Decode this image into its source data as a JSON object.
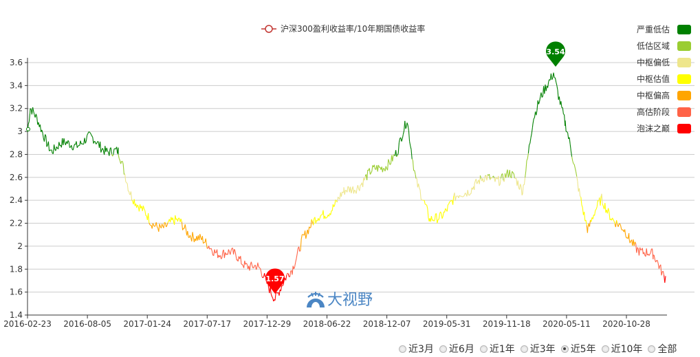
{
  "chart_data": {
    "type": "line",
    "title": "",
    "series_name": "沪深300盈利收益率/10年期国债收益率",
    "xlabel": "",
    "ylabel": "",
    "ylim": [
      1.4,
      3.6
    ],
    "yticks": [
      "1.4",
      "1.6",
      "1.8",
      "2",
      "2.2",
      "2.4",
      "2.6",
      "2.8",
      "3",
      "3.2",
      "3.4",
      "3.6"
    ],
    "xticks": [
      "2016-02-23",
      "2016-08-05",
      "2017-01-24",
      "2017-07-17",
      "2017-12-29",
      "2018-06-22",
      "2018-12-07",
      "2019-05-31",
      "2019-11-18",
      "2020-05-11",
      "2020-10-28"
    ],
    "grid": true,
    "legend_position": "top",
    "x": [
      "2016-02-23",
      "2016-03-15",
      "2016-05-10",
      "2016-08-05",
      "2016-10-20",
      "2016-11-25",
      "2017-01-24",
      "2017-04-20",
      "2017-07-17",
      "2017-10-10",
      "2017-12-29",
      "2018-02-10",
      "2018-04-15",
      "2018-06-22",
      "2018-09-20",
      "2018-12-07",
      "2019-02-20",
      "2019-04-15",
      "2019-05-31",
      "2019-08-20",
      "2019-11-18",
      "2020-01-15",
      "2020-03-01",
      "2020-03-20",
      "2020-05-11",
      "2020-07-10",
      "2020-08-30",
      "2020-10-28",
      "2021-01-10",
      "2021-02-20"
    ],
    "values": [
      3.0,
      3.19,
      2.85,
      2.93,
      2.8,
      2.5,
      2.18,
      2.2,
      2.0,
      1.9,
      1.8,
      1.57,
      1.78,
      2.1,
      2.45,
      2.8,
      3.1,
      2.6,
      2.2,
      2.55,
      2.62,
      2.5,
      3.1,
      3.54,
      3.05,
      2.15,
      2.4,
      2.05,
      1.9,
      1.74
    ],
    "annotations": [
      {
        "label": "3.54",
        "type": "max",
        "date": "2020-03-20",
        "color": "#008000"
      },
      {
        "label": "1.57",
        "type": "min",
        "date": "2018-02-10",
        "color": "#ff0000"
      }
    ],
    "valuation_bands": [
      {
        "name": "严重低估",
        "color": "#008000"
      },
      {
        "name": "低估区域",
        "color": "#9acd32"
      },
      {
        "name": "中枢偏低",
        "color": "#eee68c"
      },
      {
        "name": "中枢估值",
        "color": "#ffff00"
      },
      {
        "name": "中枢偏高",
        "color": "#ffa500"
      },
      {
        "name": "高估阶段",
        "color": "#ff6347"
      },
      {
        "name": "泡沫之巅",
        "color": "#ff0000"
      }
    ]
  },
  "legend": {
    "series_label": "沪深300盈利收益率/10年期国债收益率",
    "bands": [
      {
        "label": "严重低估",
        "color": "#008000"
      },
      {
        "label": "低估区域",
        "color": "#9acd32"
      },
      {
        "label": "中枢偏低",
        "color": "#eee68c"
      },
      {
        "label": "中枢估值",
        "color": "#ffff00"
      },
      {
        "label": "中枢偏高",
        "color": "#ffa500"
      },
      {
        "label": "高估阶段",
        "color": "#ff6347"
      },
      {
        "label": "泡沫之巅",
        "color": "#ff0000"
      }
    ]
  },
  "watermark": {
    "text": "大视野"
  },
  "range_selector": {
    "options": [
      {
        "label": "近3月",
        "checked": false
      },
      {
        "label": "近6月",
        "checked": false
      },
      {
        "label": "近1年",
        "checked": false
      },
      {
        "label": "近3年",
        "checked": false
      },
      {
        "label": "近5年",
        "checked": true
      },
      {
        "label": "近10年",
        "checked": false
      },
      {
        "label": "全部",
        "checked": false
      }
    ]
  }
}
